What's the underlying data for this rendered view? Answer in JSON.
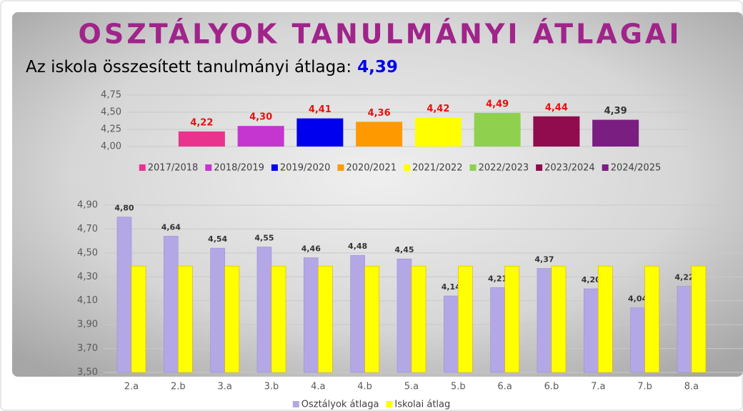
{
  "header": {
    "title": "OSZTÁLYOK TANULMÁNYI ÁTLAGAI",
    "subtitle_label": "Az iskola összesített tanulmányi átlaga:",
    "subtitle_value": "4,39"
  },
  "chart_data": [
    {
      "type": "bar",
      "series": [
        {
          "name": "2017/2018",
          "color": "#e8348d",
          "values": [
            4.22
          ],
          "value_labels": [
            "4,22"
          ],
          "label_color": "#e81010"
        },
        {
          "name": "2018/2019",
          "color": "#c535cf",
          "values": [
            4.3
          ],
          "value_labels": [
            "4,30"
          ],
          "label_color": "#e81010"
        },
        {
          "name": "2019/2020",
          "color": "#0000ee",
          "values": [
            4.41
          ],
          "value_labels": [
            "4,41"
          ],
          "label_color": "#e81010"
        },
        {
          "name": "2020/2021",
          "color": "#ff9900",
          "values": [
            4.36
          ],
          "value_labels": [
            "4,36"
          ],
          "label_color": "#e81010"
        },
        {
          "name": "2021/2022",
          "color": "#ffff00",
          "values": [
            4.42
          ],
          "value_labels": [
            "4,42"
          ],
          "label_color": "#e81010"
        },
        {
          "name": "2022/2023",
          "color": "#8fd14f",
          "values": [
            4.49
          ],
          "value_labels": [
            "4,49"
          ],
          "label_color": "#e81010"
        },
        {
          "name": "2023/2024",
          "color": "#900c4f",
          "values": [
            4.44
          ],
          "value_labels": [
            "4,44"
          ],
          "label_color": "#e81010"
        },
        {
          "name": "2024/2025",
          "color": "#7a1e82",
          "values": [
            4.39
          ],
          "value_labels": [
            "4,39"
          ],
          "label_color": "#333333"
        }
      ],
      "ylim": [
        4.0,
        4.75
      ],
      "yticks": [
        {
          "value": 4.0,
          "label": "4,00"
        },
        {
          "value": 4.25,
          "label": "4,25"
        },
        {
          "value": 4.5,
          "label": "4,50"
        },
        {
          "value": 4.75,
          "label": "4,75"
        }
      ],
      "grid": true,
      "legend": "bottom"
    },
    {
      "type": "bar",
      "categories": [
        "2.a",
        "2.b",
        "3.a",
        "3.b",
        "4.a",
        "4.b",
        "5.a",
        "5.b",
        "6.a",
        "6.b",
        "7.a",
        "7.b",
        "8.a"
      ],
      "series": [
        {
          "name": "Osztályok átlaga",
          "color": "#b4a7e6",
          "label_color": "#333333",
          "values": [
            4.8,
            4.64,
            4.54,
            4.55,
            4.46,
            4.48,
            4.45,
            4.14,
            4.21,
            4.37,
            4.2,
            4.04,
            4.22
          ],
          "value_labels": [
            "4,80",
            "4,64",
            "4,54",
            "4,55",
            "4,46",
            "4,48",
            "4,45",
            "4,14",
            "4,21",
            "4,37",
            "4,20",
            "4,04",
            "4,22"
          ]
        },
        {
          "name": "Iskolai átlag",
          "color": "#ffff00",
          "values": [
            4.39,
            4.39,
            4.39,
            4.39,
            4.39,
            4.39,
            4.39,
            4.39,
            4.39,
            4.39,
            4.39,
            4.39,
            4.39
          ]
        }
      ],
      "ylim": [
        3.5,
        4.9
      ],
      "yticks": [
        {
          "value": 3.5,
          "label": "3,50"
        },
        {
          "value": 3.7,
          "label": "3,70"
        },
        {
          "value": 3.9,
          "label": "3,90"
        },
        {
          "value": 4.1,
          "label": "4,10"
        },
        {
          "value": 4.3,
          "label": "4,30"
        },
        {
          "value": 4.5,
          "label": "4,50"
        },
        {
          "value": 4.7,
          "label": "4,70"
        },
        {
          "value": 4.9,
          "label": "4,90"
        }
      ],
      "grid": true,
      "legend": "bottom"
    }
  ]
}
